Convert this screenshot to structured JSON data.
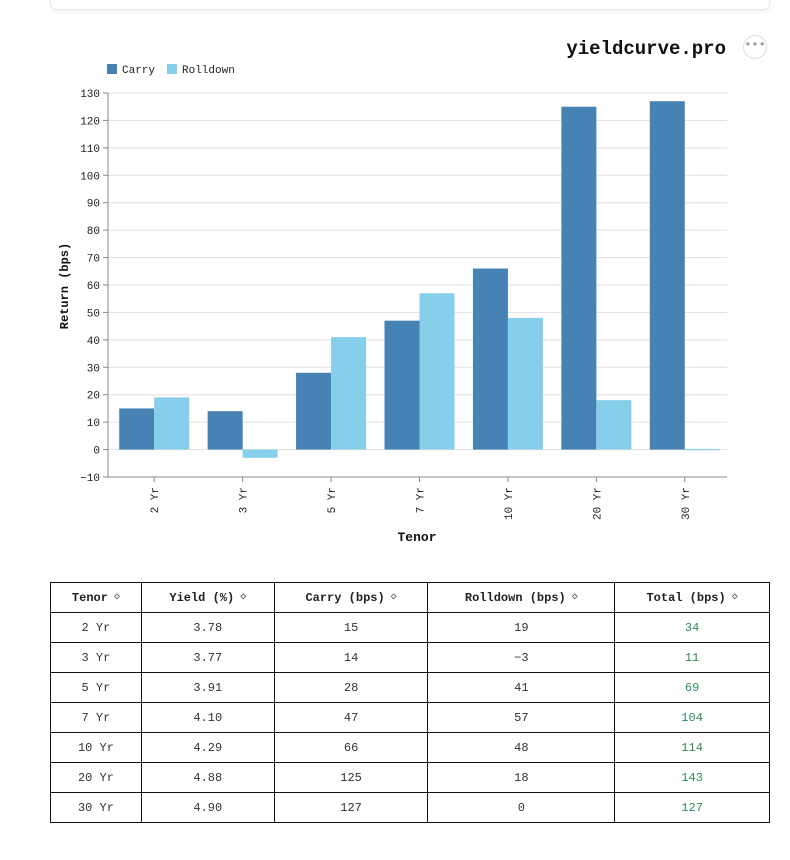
{
  "brand": "yieldcurve.pro",
  "menu_icon": "more-horizontal-icon",
  "colors": {
    "carry": "#4682b4",
    "rolldown": "#87ceeb",
    "total_text": "#2e8b57",
    "grid": "#e0e0e0"
  },
  "chart_data": {
    "type": "bar",
    "categories": [
      "2 Yr",
      "3 Yr",
      "5 Yr",
      "7 Yr",
      "10 Yr",
      "20 Yr",
      "30 Yr"
    ],
    "series": [
      {
        "name": "Carry",
        "values": [
          15,
          14,
          28,
          47,
          66,
          125,
          127
        ]
      },
      {
        "name": "Rolldown",
        "values": [
          19,
          -3,
          41,
          57,
          48,
          18,
          0
        ]
      }
    ],
    "xlabel": "Tenor",
    "ylabel": "Return (bps)",
    "ylim": [
      -10,
      130
    ],
    "yticks": [
      -10,
      0,
      10,
      20,
      30,
      40,
      50,
      60,
      70,
      80,
      90,
      100,
      110,
      120,
      130
    ],
    "grid": true,
    "legend": "top-left"
  },
  "table": {
    "headers": [
      "Tenor",
      "Yield (%)",
      "Carry (bps)",
      "Rolldown (bps)",
      "Total (bps)"
    ],
    "sort_icon": "sort-toggle-icon",
    "rows": [
      [
        "2 Yr",
        "3.78",
        "15",
        "19",
        "34"
      ],
      [
        "3 Yr",
        "3.77",
        "14",
        "−3",
        "11"
      ],
      [
        "5 Yr",
        "3.91",
        "28",
        "41",
        "69"
      ],
      [
        "7 Yr",
        "4.10",
        "47",
        "57",
        "104"
      ],
      [
        "10 Yr",
        "4.29",
        "66",
        "48",
        "114"
      ],
      [
        "20 Yr",
        "4.88",
        "125",
        "18",
        "143"
      ],
      [
        "30 Yr",
        "4.90",
        "127",
        "0",
        "127"
      ]
    ]
  }
}
